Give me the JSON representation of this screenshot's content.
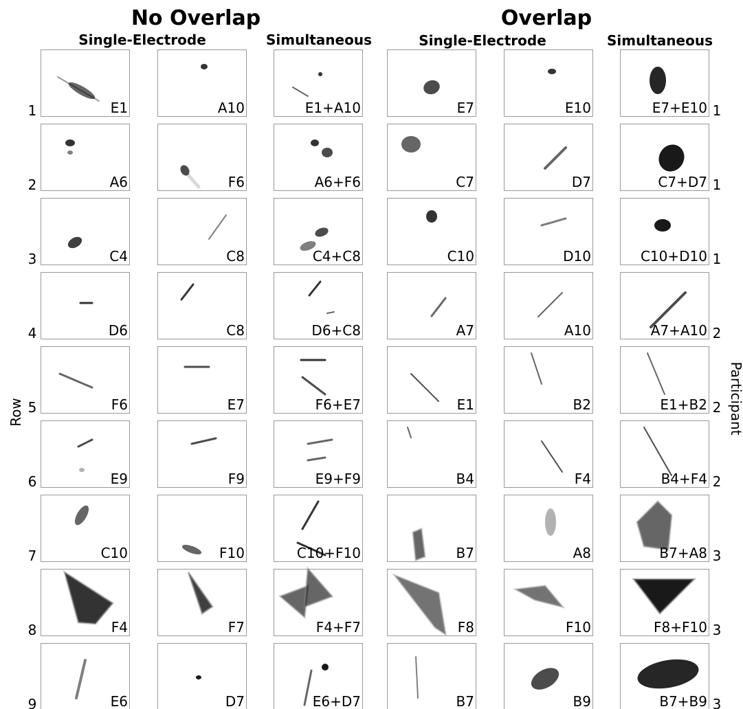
{
  "titles": [
    "No Overlap",
    "Overlap"
  ],
  "column_headers": [
    "Single-Electrode",
    "Simultaneous",
    "Single-Electrode",
    "Simultaneous"
  ],
  "row_axis_label": "Row",
  "participant_axis_label": "Participant",
  "rows": [
    {
      "row": "1",
      "participant": "1",
      "panels": [
        "E1",
        "A10",
        "E1+A10",
        "E7",
        "E10",
        "E7+E10"
      ]
    },
    {
      "row": "2",
      "participant": "1",
      "panels": [
        "A6",
        "F6",
        "A6+F6",
        "C7",
        "D7",
        "C7+D7"
      ]
    },
    {
      "row": "3",
      "participant": "1",
      "panels": [
        "C4",
        "C8",
        "C4+C8",
        "C10",
        "D10",
        "C10+D10"
      ]
    },
    {
      "row": "4",
      "participant": "2",
      "panels": [
        "D6",
        "C8",
        "D6+C8",
        "A7",
        "A10",
        "A7+A10"
      ]
    },
    {
      "row": "5",
      "participant": "2",
      "panels": [
        "F6",
        "E7",
        "F6+E7",
        "E1",
        "B2",
        "E1+B2"
      ]
    },
    {
      "row": "6",
      "participant": "2",
      "panels": [
        "E9",
        "F9",
        "E9+F9",
        "B4",
        "F4",
        "B4+F4"
      ]
    },
    {
      "row": "7",
      "participant": "3",
      "panels": [
        "C10",
        "F10",
        "C10+F10",
        "B7",
        "A8",
        "B7+A8"
      ]
    },
    {
      "row": "8",
      "participant": "3",
      "panels": [
        "F4",
        "F7",
        "F4+F7",
        "F8",
        "F10",
        "F8+F10"
      ]
    },
    {
      "row": "9",
      "participant": "3",
      "panels": [
        "E6",
        "D7",
        "E6+D7",
        "B7",
        "B9",
        "B7+B9"
      ]
    }
  ]
}
